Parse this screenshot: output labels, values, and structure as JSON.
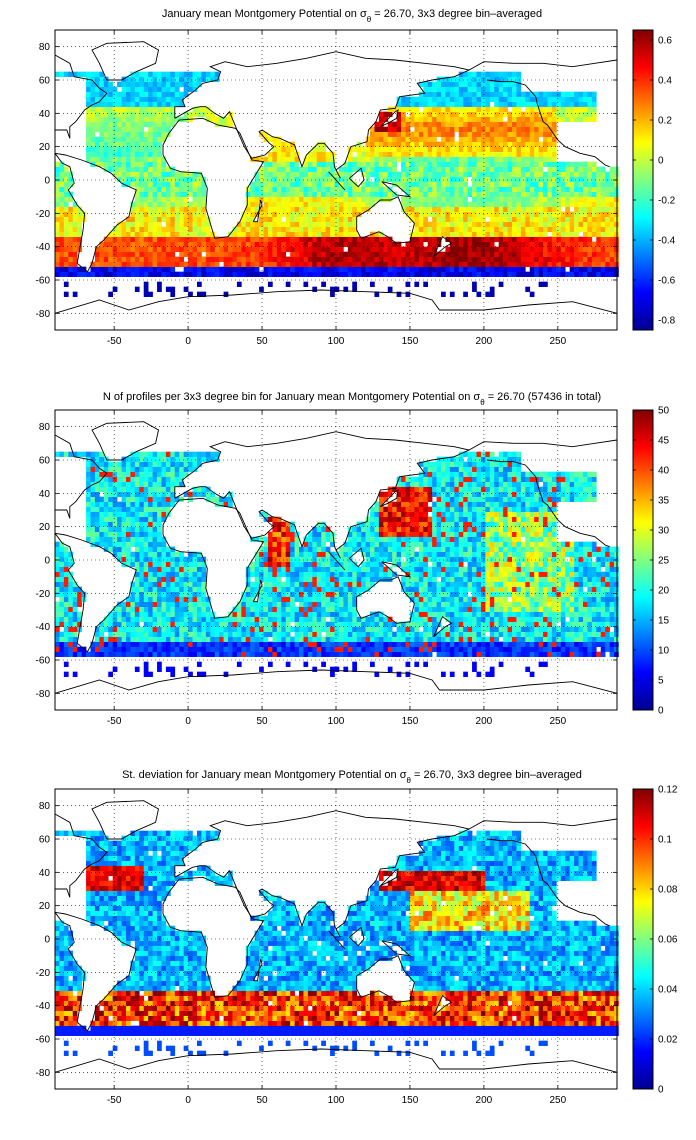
{
  "chart_data": [
    {
      "type": "heatmap",
      "title_parts": [
        "January mean Montgomery Potential on ",
        "σ",
        "θ",
        " = 26.70, 3x3 degree bin–averaged"
      ],
      "xlim": [
        -90,
        290
      ],
      "ylim": [
        -90,
        90
      ],
      "x_ticks": [
        -50,
        0,
        50,
        100,
        150,
        200,
        250
      ],
      "y_ticks": [
        80,
        60,
        40,
        20,
        0,
        -20,
        -40,
        -60,
        -80
      ],
      "grid": true,
      "colorbar": {
        "range": [
          -0.85,
          0.65
        ],
        "ticks": [
          0.6,
          0.4,
          0.2,
          0,
          -0.2,
          -0.4,
          -0.6,
          -0.8
        ]
      },
      "colormap": "jet"
    },
    {
      "type": "heatmap",
      "title_parts": [
        "N of profiles per 3x3 degree bin for January mean Montgomery Potential on ",
        "σ",
        "θ",
        " = 26.70 (57436 in total)"
      ],
      "xlim": [
        -90,
        290
      ],
      "ylim": [
        -90,
        90
      ],
      "x_ticks": [
        -50,
        0,
        50,
        100,
        150,
        200,
        250
      ],
      "y_ticks": [
        80,
        60,
        40,
        20,
        0,
        -20,
        -40,
        -60,
        -80
      ],
      "grid": true,
      "colorbar": {
        "range": [
          0,
          50
        ],
        "ticks": [
          50,
          45,
          40,
          35,
          30,
          25,
          20,
          15,
          10,
          5,
          0
        ]
      },
      "colormap": "jet"
    },
    {
      "type": "heatmap",
      "title_parts": [
        "St. deviation for January mean Montgomery Potential on ",
        "σ",
        "θ",
        " = 26.70, 3x3 degree bin–averaged"
      ],
      "xlim": [
        -90,
        290
      ],
      "ylim": [
        -90,
        90
      ],
      "x_ticks": [
        -50,
        0,
        50,
        100,
        150,
        200,
        250
      ],
      "y_ticks": [
        80,
        60,
        40,
        20,
        0,
        -20,
        -40,
        -60,
        -80
      ],
      "grid": true,
      "colorbar": {
        "range": [
          0,
          0.12
        ],
        "ticks": [
          0.12,
          0.1,
          0.08,
          0.06,
          0.04,
          0.02,
          0
        ]
      },
      "colormap": "jet"
    }
  ]
}
